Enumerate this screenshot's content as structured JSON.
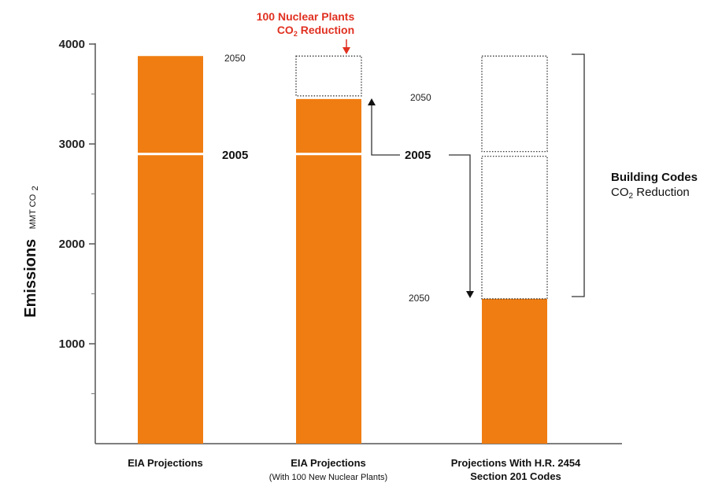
{
  "chart_data": {
    "type": "bar",
    "ylabel": "Emissions",
    "yunit": "MMT CO",
    "yunit_sub": "2",
    "ylim": [
      0,
      4000
    ],
    "yticks": [
      "4000",
      "3000",
      "2000",
      "1000"
    ],
    "ytick_values": [
      4000,
      3000,
      2000,
      1000
    ],
    "grid": false,
    "bar_color": "#f07d12",
    "marker_2005_value": 2900,
    "categories": [
      {
        "label": "EIA Projections",
        "sublabel": ""
      },
      {
        "label": "EIA Projections",
        "sublabel": "(With 100 New Nuclear Plants)"
      },
      {
        "label": "Projections With H.R. 2454",
        "sublabel": "Section 201 Codes"
      }
    ],
    "bars": [
      {
        "value_2050": 3880,
        "value_2005": 2900,
        "dotted_top": null,
        "year_2050_label": "2050",
        "year_2005_label": "2005"
      },
      {
        "value_2050": 3450,
        "value_2005": 2900,
        "dotted_top": 3880,
        "year_2050_label": "",
        "year_2005_label": ""
      },
      {
        "value_2050": 1450,
        "value_2005": 2900,
        "dotted_top": 3880,
        "year_2050_label": "2050",
        "year_2005_label": ""
      }
    ],
    "annotations": {
      "nuclear_line1": "100 Nuclear Plants",
      "nuclear_line2": "CO",
      "nuclear_line2_sub": "2",
      "nuclear_line2_rest": " Reduction",
      "middle_2005": "2005",
      "top_2050": "2050",
      "building_line1": "Building Codes",
      "building_line2": "CO",
      "building_line2_sub": "2",
      "building_line2_rest": " Reduction"
    }
  }
}
